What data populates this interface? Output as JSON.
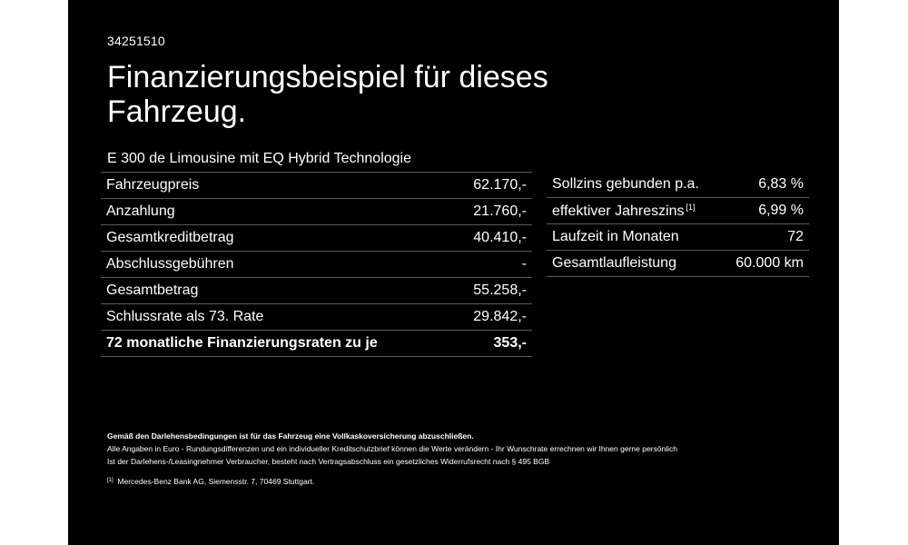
{
  "header": {
    "code": "34251510",
    "title": "Finanzierungsbeispiel für dieses Fahrzeug.",
    "subtitle": "E 300 de Limousine mit EQ Hybrid Technologie"
  },
  "financing": {
    "rows": [
      {
        "label": "Fahrzeugpreis",
        "value": "62.170,-"
      },
      {
        "label": "Anzahlung",
        "value": "21.760,-"
      },
      {
        "label": "Gesamtkreditbetrag",
        "value": "40.410,-"
      },
      {
        "label": "Abschlussgebühren",
        "value": "-"
      },
      {
        "label": "Gesamtbetrag",
        "value": "55.258,-"
      },
      {
        "label": "Schlussrate als 73. Rate",
        "value": "29.842,-"
      },
      {
        "label": "72 monatliche Finanzierungsraten zu je",
        "value": "353,-"
      }
    ]
  },
  "terms": {
    "rows": [
      {
        "label": "Sollzins gebunden p.a.",
        "value": "6,83 %"
      },
      {
        "label": "effektiver Jahreszins",
        "ref": "[1]",
        "value": "6,99 %"
      },
      {
        "label": "Laufzeit in Monaten",
        "value": "72"
      },
      {
        "label": "Gesamtlaufleistung",
        "value": "60.000 km"
      }
    ]
  },
  "footer": {
    "insurance_note": "Gemäß den Darlehensbedingungen ist für das Fahrzeug eine Vollkaskoversicherung abzuschließen.",
    "line1": "Alle Angaben in Euro - Rundungsdifferenzen und ein individueller Kreditschutzbrief können die Werte verändern - Ihr Wunschrate errechnen wir Ihnen gerne persönlich",
    "line2": "Ist der Darlehens-/Leasingnehmer Verbraucher, besteht nach Vertragsabschluss ein gesetzliches Widerrufsrecht nach § 495 BGB",
    "ref_marker": "[1]",
    "ref_text": "Mercedes-Benz Bank AG, Siemensstr. 7, 70469 Stuttgart."
  }
}
